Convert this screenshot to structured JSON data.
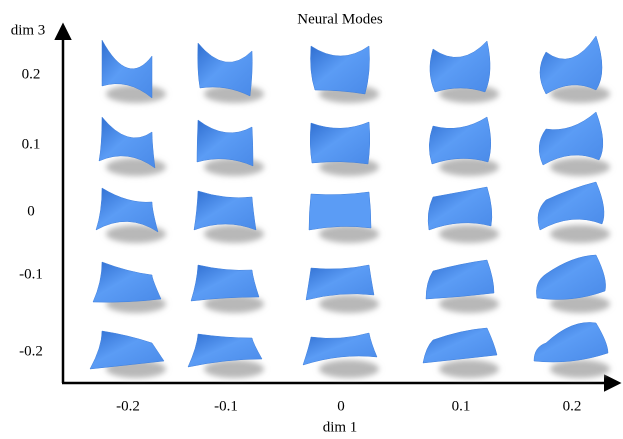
{
  "title": "Neural Modes",
  "x_axis": {
    "label": "dim 1",
    "ticks": [
      "-0.2",
      "-0.1",
      "0",
      "0.1",
      "0.2"
    ]
  },
  "y_axis": {
    "label": "dim 3",
    "ticks": [
      "0.2",
      "0.1",
      "0",
      "-0.1",
      "-0.2"
    ]
  }
}
